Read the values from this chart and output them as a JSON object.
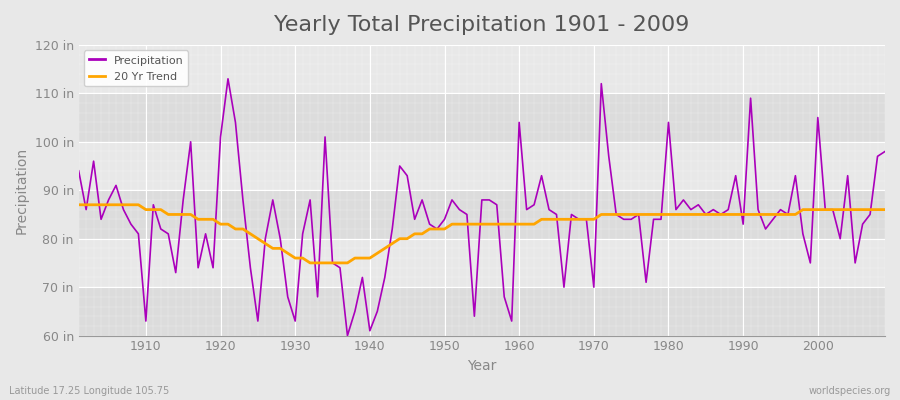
{
  "title": "Yearly Total Precipitation 1901 - 2009",
  "xlabel": "Year",
  "ylabel": "Precipitation",
  "xlim": [
    1901,
    2009
  ],
  "ylim": [
    60,
    120
  ],
  "yticks": [
    60,
    70,
    80,
    90,
    100,
    110,
    120
  ],
  "ytick_labels": [
    "60 in",
    "70 in",
    "80 in",
    "90 in",
    "100 in",
    "110 in",
    "120 in"
  ],
  "xticks": [
    1910,
    1920,
    1930,
    1940,
    1950,
    1960,
    1970,
    1980,
    1990,
    2000
  ],
  "precip_color": "#AA00BB",
  "trend_color": "#FFA500",
  "bg_color": "#E8E8E8",
  "band_color1": "#DCDCDC",
  "band_color2": "#E8E8E8",
  "grid_color": "#FFFFFF",
  "title_fontsize": 16,
  "label_fontsize": 10,
  "tick_fontsize": 9,
  "watermark_left": "Latitude 17.25 Longitude 105.75",
  "watermark_right": "worldspecies.org",
  "years": [
    1901,
    1902,
    1903,
    1904,
    1905,
    1906,
    1907,
    1908,
    1909,
    1910,
    1911,
    1912,
    1913,
    1914,
    1915,
    1916,
    1917,
    1918,
    1919,
    1920,
    1921,
    1922,
    1923,
    1924,
    1925,
    1926,
    1927,
    1928,
    1929,
    1930,
    1931,
    1932,
    1933,
    1934,
    1935,
    1936,
    1937,
    1938,
    1939,
    1940,
    1941,
    1942,
    1943,
    1944,
    1945,
    1946,
    1947,
    1948,
    1949,
    1950,
    1951,
    1952,
    1953,
    1954,
    1955,
    1956,
    1957,
    1958,
    1959,
    1960,
    1961,
    1962,
    1963,
    1964,
    1965,
    1966,
    1967,
    1968,
    1969,
    1970,
    1971,
    1972,
    1973,
    1974,
    1975,
    1976,
    1977,
    1978,
    1979,
    1980,
    1981,
    1982,
    1983,
    1984,
    1985,
    1986,
    1987,
    1988,
    1989,
    1990,
    1991,
    1992,
    1993,
    1994,
    1995,
    1996,
    1997,
    1998,
    1999,
    2000,
    2001,
    2002,
    2003,
    2004,
    2005,
    2006,
    2007,
    2008,
    2009
  ],
  "precip": [
    94,
    86,
    96,
    84,
    88,
    91,
    86,
    83,
    81,
    63,
    87,
    82,
    81,
    73,
    88,
    100,
    74,
    81,
    74,
    101,
    113,
    104,
    88,
    74,
    63,
    80,
    88,
    80,
    68,
    63,
    81,
    88,
    68,
    101,
    75,
    74,
    60,
    65,
    72,
    61,
    65,
    72,
    82,
    95,
    93,
    84,
    88,
    83,
    82,
    84,
    88,
    86,
    85,
    64,
    88,
    88,
    87,
    68,
    63,
    104,
    86,
    87,
    93,
    86,
    85,
    70,
    85,
    84,
    84,
    70,
    112,
    97,
    85,
    84,
    84,
    85,
    71,
    84,
    84,
    104,
    86,
    88,
    86,
    87,
    85,
    86,
    85,
    86,
    93,
    83,
    109,
    86,
    82,
    84,
    86,
    85,
    93,
    81,
    75,
    105,
    86,
    86,
    80,
    93,
    75,
    83,
    85,
    97,
    98
  ],
  "trend_years": [
    1901,
    1902,
    1903,
    1904,
    1905,
    1906,
    1907,
    1908,
    1909,
    1910,
    1911,
    1912,
    1913,
    1914,
    1915,
    1916,
    1917,
    1918,
    1919,
    1920,
    1921,
    1922,
    1923,
    1924,
    1925,
    1926,
    1927,
    1928,
    1929,
    1930,
    1931,
    1932,
    1933,
    1934,
    1935,
    1936,
    1937,
    1938,
    1939,
    1940,
    1941,
    1942,
    1943,
    1944,
    1945,
    1946,
    1947,
    1948,
    1949,
    1950,
    1951,
    1952,
    1953,
    1954,
    1955,
    1956,
    1957,
    1958,
    1959,
    1960,
    1961,
    1962,
    1963,
    1964,
    1965,
    1966,
    1967,
    1968,
    1969,
    1970,
    1971,
    1972,
    1973,
    1974,
    1975,
    1976,
    1977,
    1978,
    1979,
    1980,
    1981,
    1982,
    1983,
    1984,
    1985,
    1986,
    1987,
    1988,
    1989,
    1990,
    1991,
    1992,
    1993,
    1994,
    1995,
    1996,
    1997,
    1998,
    1999,
    2000,
    2001,
    2002,
    2003,
    2004,
    2005,
    2006,
    2007,
    2008,
    2009
  ],
  "trend": [
    87,
    87,
    87,
    87,
    87,
    87,
    87,
    87,
    87,
    86,
    86,
    86,
    85,
    85,
    85,
    85,
    84,
    84,
    84,
    83,
    83,
    82,
    82,
    81,
    80,
    79,
    78,
    78,
    77,
    76,
    76,
    75,
    75,
    75,
    75,
    75,
    75,
    76,
    76,
    76,
    77,
    78,
    79,
    80,
    80,
    81,
    81,
    82,
    82,
    82,
    83,
    83,
    83,
    83,
    83,
    83,
    83,
    83,
    83,
    83,
    83,
    83,
    84,
    84,
    84,
    84,
    84,
    84,
    84,
    84,
    85,
    85,
    85,
    85,
    85,
    85,
    85,
    85,
    85,
    85,
    85,
    85,
    85,
    85,
    85,
    85,
    85,
    85,
    85,
    85,
    85,
    85,
    85,
    85,
    85,
    85,
    85,
    86,
    86,
    86,
    86,
    86,
    86,
    86,
    86,
    86,
    86,
    86,
    86
  ]
}
